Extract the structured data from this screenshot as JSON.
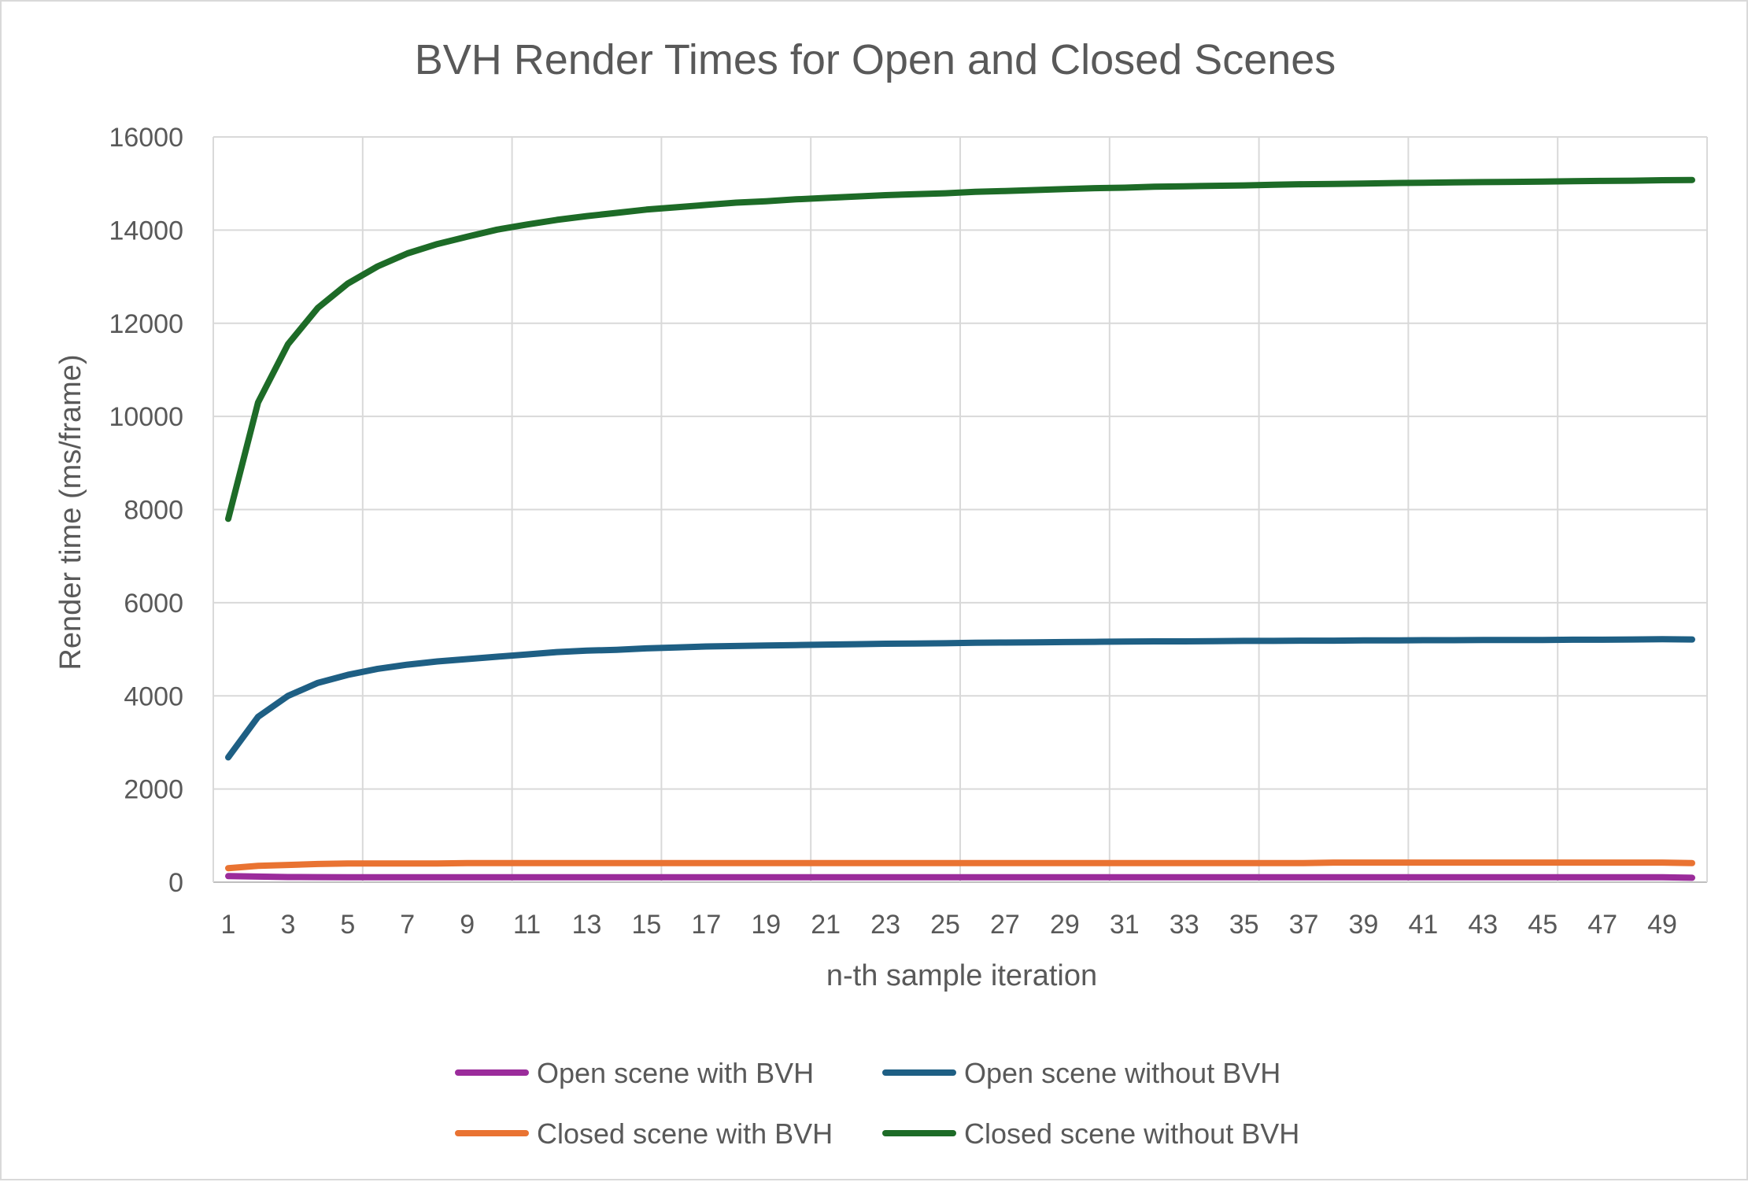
{
  "chart_data": {
    "type": "line",
    "title": "BVH Render Times for Open and Closed Scenes",
    "xlabel": "n-th sample iteration",
    "ylabel": "Render time (ms/frame)",
    "ylim": [
      0,
      16000
    ],
    "y_ticks": [
      0,
      2000,
      4000,
      6000,
      8000,
      10000,
      12000,
      14000,
      16000
    ],
    "x": [
      1,
      2,
      3,
      4,
      5,
      6,
      7,
      8,
      9,
      10,
      11,
      12,
      13,
      14,
      15,
      16,
      17,
      18,
      19,
      20,
      21,
      22,
      23,
      24,
      25,
      26,
      27,
      28,
      29,
      30,
      31,
      32,
      33,
      34,
      35,
      36,
      37,
      38,
      39,
      40,
      41,
      42,
      43,
      44,
      45,
      46,
      47,
      48,
      49,
      50
    ],
    "x_tick_labels": [
      1,
      3,
      5,
      7,
      9,
      11,
      13,
      15,
      17,
      19,
      21,
      23,
      25,
      27,
      29,
      31,
      33,
      35,
      37,
      39,
      41,
      43,
      45,
      47,
      49
    ],
    "grid": true,
    "legend_position": "bottom",
    "series": [
      {
        "name": "Open scene with BVH",
        "color": "#9b2c9b",
        "values": [
          130,
          120,
          110,
          108,
          106,
          105,
          105,
          105,
          105,
          105,
          105,
          105,
          105,
          105,
          105,
          105,
          105,
          105,
          105,
          105,
          105,
          105,
          105,
          105,
          105,
          105,
          105,
          105,
          105,
          105,
          105,
          105,
          105,
          105,
          105,
          105,
          105,
          105,
          105,
          105,
          105,
          105,
          105,
          105,
          105,
          105,
          105,
          105,
          105,
          95
        ]
      },
      {
        "name": "Open scene without BVH",
        "color": "#1e5f84",
        "values": [
          2680,
          3550,
          4000,
          4280,
          4450,
          4580,
          4670,
          4740,
          4790,
          4840,
          4890,
          4940,
          4970,
          4990,
          5020,
          5040,
          5060,
          5070,
          5080,
          5090,
          5100,
          5110,
          5120,
          5125,
          5130,
          5140,
          5145,
          5150,
          5155,
          5160,
          5165,
          5170,
          5170,
          5175,
          5180,
          5180,
          5185,
          5185,
          5190,
          5190,
          5195,
          5195,
          5200,
          5200,
          5200,
          5205,
          5205,
          5210,
          5215,
          5210
        ]
      },
      {
        "name": "Closed scene with BVH",
        "color": "#e97332",
        "values": [
          300,
          350,
          370,
          390,
          400,
          400,
          400,
          400,
          410,
          410,
          410,
          410,
          410,
          410,
          410,
          410,
          410,
          410,
          410,
          410,
          410,
          410,
          410,
          410,
          410,
          410,
          410,
          410,
          410,
          410,
          410,
          410,
          410,
          410,
          410,
          410,
          410,
          420,
          420,
          420,
          420,
          420,
          420,
          420,
          420,
          420,
          420,
          420,
          420,
          410
        ]
      },
      {
        "name": "Closed scene without BVH",
        "color": "#1d6b27",
        "values": [
          7800,
          10300,
          11550,
          12330,
          12850,
          13220,
          13500,
          13700,
          13860,
          14010,
          14120,
          14220,
          14300,
          14370,
          14440,
          14490,
          14540,
          14590,
          14620,
          14660,
          14690,
          14720,
          14750,
          14770,
          14790,
          14820,
          14840,
          14860,
          14880,
          14900,
          14910,
          14930,
          14940,
          14950,
          14960,
          14975,
          14985,
          14990,
          15000,
          15010,
          15015,
          15025,
          15030,
          15035,
          15040,
          15050,
          15055,
          15060,
          15070,
          15075
        ]
      }
    ]
  }
}
